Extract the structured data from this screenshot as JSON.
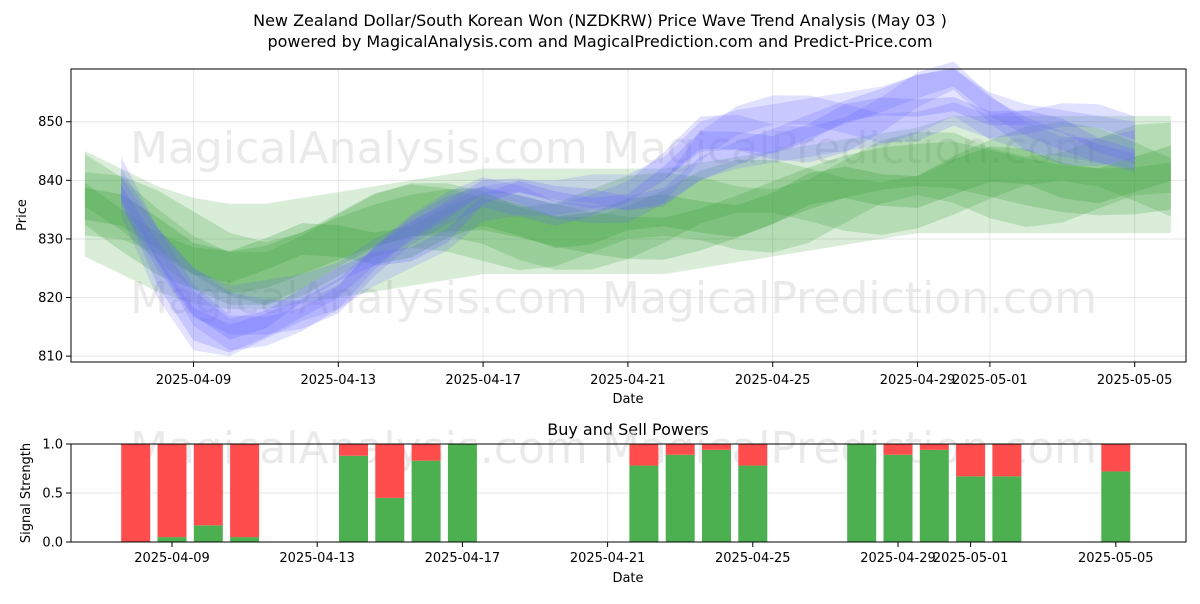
{
  "title": "New Zealand Dollar/South Korean Won (NZDKRW) Price Wave Trend Analysis (May 03 )",
  "subtitle": "powered by MagicalAnalysis.com and MagicalPrediction.com and Predict-Price.com",
  "watermarks": [
    "MagicalAnalysis.com",
    "MagicalPrediction.com"
  ],
  "colors": {
    "blue_band": "#6666ff",
    "green_band": "#2e9a2e",
    "buy": "#4caf50",
    "sell": "#ff4d4d",
    "grid": "#e6e6e6"
  },
  "chart_data": [
    {
      "type": "area",
      "name": "price-wave",
      "xlabel": "Date",
      "ylabel": "Price",
      "ylim": [
        809,
        859
      ],
      "x_range": [
        "2025-04-05",
        "2025-05-06"
      ],
      "y_ticks": [
        810,
        820,
        830,
        840,
        850
      ],
      "x_ticks": [
        "2025-04-09",
        "2025-04-13",
        "2025-04-17",
        "2025-04-21",
        "2025-04-25",
        "2025-04-29",
        "2025-05-01",
        "2025-05-05"
      ],
      "grid": true,
      "series": [
        {
          "color": "blue",
          "dates": [
            "2025-04-07",
            "2025-04-08",
            "2025-04-09",
            "2025-04-10",
            "2025-04-11",
            "2025-04-12",
            "2025-04-13",
            "2025-04-14",
            "2025-04-15",
            "2025-04-16",
            "2025-04-17",
            "2025-04-18",
            "2025-04-19",
            "2025-04-20",
            "2025-04-21",
            "2025-04-22",
            "2025-04-23",
            "2025-04-24",
            "2025-04-25",
            "2025-04-26",
            "2025-04-27",
            "2025-04-28",
            "2025-04-29",
            "2025-04-30",
            "2025-05-01",
            "2025-05-02",
            "2025-05-03",
            "2025-05-04",
            "2025-05-05"
          ],
          "center": [
            838,
            826,
            818,
            816,
            818,
            820,
            822,
            826,
            829,
            832,
            836,
            837,
            837,
            838,
            838,
            840,
            845,
            847,
            848,
            849,
            850,
            851,
            853,
            855,
            851,
            849,
            848,
            847,
            846
          ],
          "spread": [
            4,
            6,
            7,
            6,
            5,
            4,
            4,
            4,
            4,
            4,
            3,
            3,
            3,
            3,
            3,
            4,
            5,
            5,
            5,
            5,
            5,
            5,
            5,
            4,
            4,
            4,
            4,
            4,
            4
          ]
        },
        {
          "color": "green",
          "dates": [
            "2025-04-06",
            "2025-04-07",
            "2025-04-08",
            "2025-04-09",
            "2025-04-10",
            "2025-04-11",
            "2025-04-12",
            "2025-04-13",
            "2025-04-14",
            "2025-04-15",
            "2025-04-16",
            "2025-04-17",
            "2025-04-18",
            "2025-04-19",
            "2025-04-20",
            "2025-04-21",
            "2025-04-22",
            "2025-04-23",
            "2025-04-24",
            "2025-04-25",
            "2025-04-26",
            "2025-04-27",
            "2025-04-28",
            "2025-04-29",
            "2025-04-30",
            "2025-05-01",
            "2025-05-02",
            "2025-05-03",
            "2025-05-04",
            "2025-05-05",
            "2025-05-06"
          ],
          "center": [
            836,
            833,
            830,
            828,
            827,
            827,
            828,
            829,
            830,
            831,
            832,
            833,
            833,
            833,
            833,
            833,
            833,
            834,
            835,
            836,
            837,
            838,
            839,
            840,
            841,
            841,
            841,
            841,
            841,
            841,
            841
          ],
          "spread": [
            9,
            9,
            9,
            9,
            9,
            9,
            9,
            9,
            9,
            9,
            9,
            9,
            9,
            9,
            9,
            9,
            9,
            9,
            9,
            9,
            9,
            9,
            9,
            9,
            10,
            10,
            10,
            10,
            10,
            10,
            10
          ]
        }
      ]
    },
    {
      "type": "bar",
      "name": "buy-sell-powers",
      "title": "Buy and Sell Powers",
      "xlabel": "Date",
      "ylabel": "Signal Strength",
      "ylim": [
        0,
        1
      ],
      "y_ticks": [
        "0.0",
        "0.5",
        "1.0"
      ],
      "x_ticks": [
        "2025-04-09",
        "2025-04-13",
        "2025-04-17",
        "2025-04-21",
        "2025-04-25",
        "2025-04-29",
        "2025-05-01",
        "2025-05-05"
      ],
      "grid": true,
      "dates": [
        "2025-04-08",
        "2025-04-09",
        "2025-04-10",
        "2025-04-11",
        "2025-04-14",
        "2025-04-15",
        "2025-04-16",
        "2025-04-17",
        "2025-04-22",
        "2025-04-23",
        "2025-04-24",
        "2025-04-25",
        "2025-04-28",
        "2025-04-29",
        "2025-04-30",
        "2025-05-01",
        "2025-05-02",
        "2025-05-05"
      ],
      "buy": [
        0.0,
        0.05,
        0.17,
        0.05,
        0.88,
        0.45,
        0.83,
        1.0,
        0.78,
        0.89,
        0.94,
        0.78,
        1.0,
        0.89,
        0.94,
        0.67,
        0.67,
        0.72
      ],
      "sell": [
        1.0,
        0.95,
        0.83,
        0.95,
        0.12,
        0.55,
        0.17,
        0.0,
        0.22,
        0.11,
        0.06,
        0.22,
        0.0,
        0.11,
        0.06,
        0.33,
        0.33,
        0.28
      ]
    }
  ]
}
